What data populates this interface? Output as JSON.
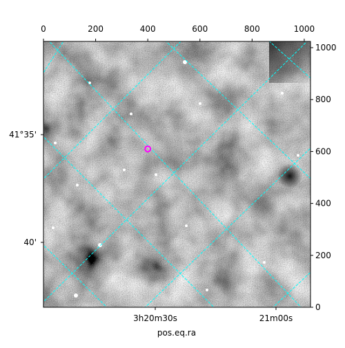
{
  "chart_data": {
    "type": "image",
    "xlabel": "pos.eq.ra",
    "xlim": [
      0,
      1024
    ],
    "xticks": [
      0,
      200,
      400,
      600,
      800,
      1000
    ],
    "ylim": [
      0,
      1024
    ],
    "yticks": [
      0,
      200,
      400,
      600,
      800,
      1000
    ],
    "ra_labels": [
      "3h20m30s",
      "21m00s"
    ],
    "dec_labels": [
      "41°35'",
      "40'"
    ],
    "marker": {
      "x": 400,
      "y": 610,
      "color": "#ff00ff"
    },
    "grid_color": "#00ffff"
  }
}
